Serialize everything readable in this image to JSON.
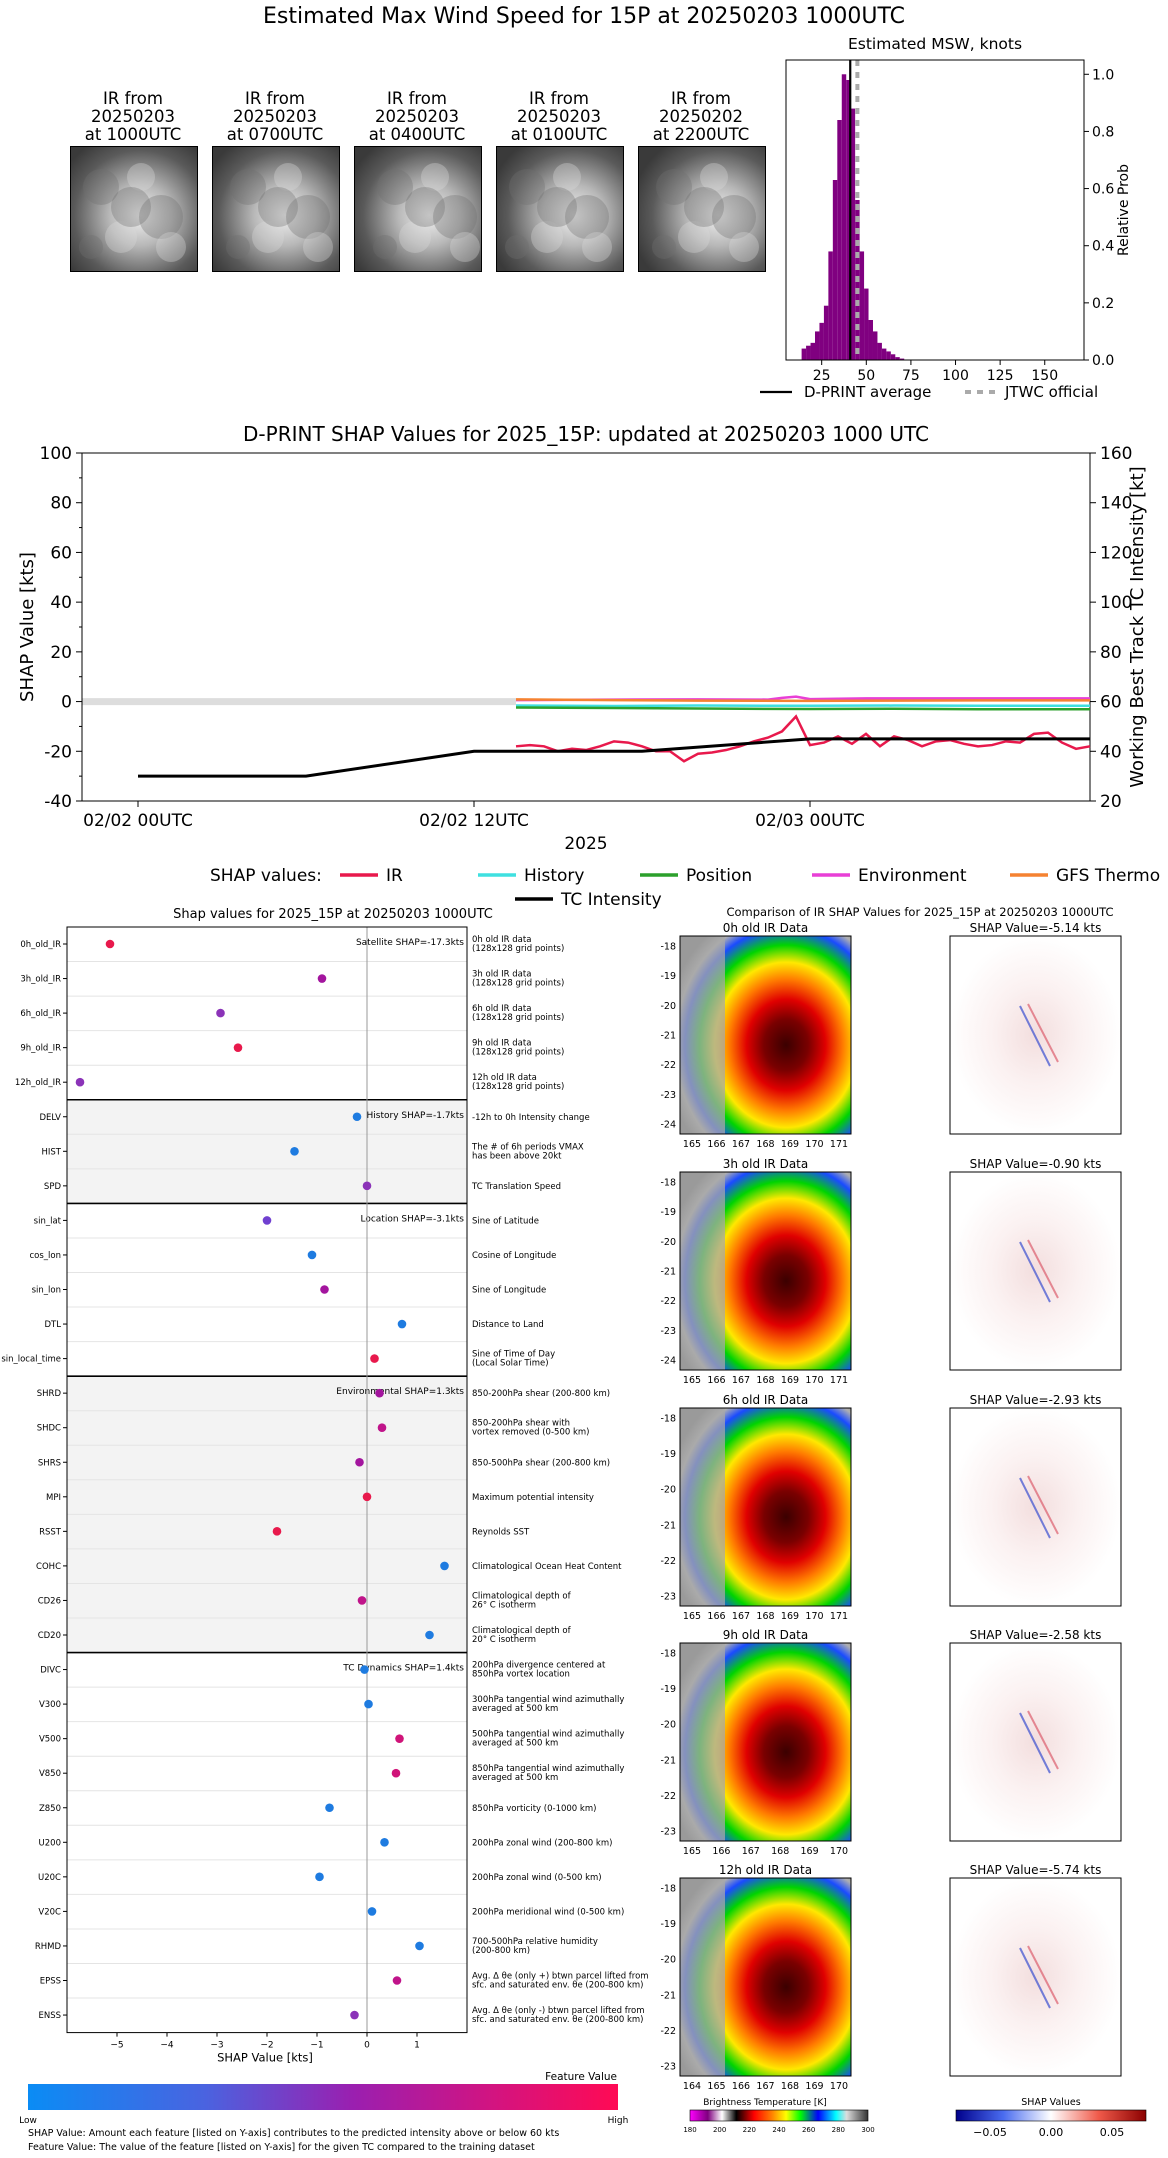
{
  "main_title": "Estimated Max Wind Speed for 15P at 20250203 1000UTC",
  "ir_panels": [
    {
      "label": "IR from\n20250203\nat 1000UTC"
    },
    {
      "label": "IR from\n20250203\nat 0700UTC"
    },
    {
      "label": "IR from\n20250203\nat 0400UTC"
    },
    {
      "label": "IR from\n20250203\nat 0100UTC"
    },
    {
      "label": "IR from\n20250202\nat 2200UTC"
    }
  ],
  "msw_legend": {
    "avg": "D-PRINT average",
    "jtwc": "JTWC official"
  },
  "shap_values_legend": {
    "title": "SHAP values:",
    "items": [
      {
        "name": "IR",
        "color": "#e8194c"
      },
      {
        "name": "History",
        "color": "#3fe0e0"
      },
      {
        "name": "Position",
        "color": "#2ca02c"
      },
      {
        "name": "Environment",
        "color": "#e83fd6"
      },
      {
        "name": "GFS Thermo",
        "color": "#f58231"
      },
      {
        "name": "TC Intensity",
        "color": "#000000"
      }
    ]
  },
  "chart_data": [
    {
      "type": "bar",
      "title": "Estimated MSW, knots",
      "ylabel": "Relative Prob",
      "xlim": [
        5,
        172
      ],
      "ylim": [
        0,
        1.05
      ],
      "xticks": [
        25,
        50,
        75,
        100,
        125,
        150
      ],
      "yticks": [
        0.0,
        0.2,
        0.4,
        0.6,
        0.8,
        1.0
      ],
      "bar_color": "#800080",
      "bin_width": 2.5,
      "bins": [
        {
          "x": 15,
          "y": 0.04
        },
        {
          "x": 17.5,
          "y": 0.05
        },
        {
          "x": 20,
          "y": 0.06
        },
        {
          "x": 22.5,
          "y": 0.1
        },
        {
          "x": 25,
          "y": 0.13
        },
        {
          "x": 27.5,
          "y": 0.19
        },
        {
          "x": 30,
          "y": 0.38
        },
        {
          "x": 32.5,
          "y": 0.63
        },
        {
          "x": 35,
          "y": 0.84
        },
        {
          "x": 37.5,
          "y": 1.0
        },
        {
          "x": 40,
          "y": 0.98
        },
        {
          "x": 42.5,
          "y": 0.88
        },
        {
          "x": 45,
          "y": 0.56
        },
        {
          "x": 47.5,
          "y": 0.38
        },
        {
          "x": 50,
          "y": 0.25
        },
        {
          "x": 52.5,
          "y": 0.14
        },
        {
          "x": 55,
          "y": 0.1
        },
        {
          "x": 57.5,
          "y": 0.06
        },
        {
          "x": 60,
          "y": 0.04
        },
        {
          "x": 62.5,
          "y": 0.03
        },
        {
          "x": 65,
          "y": 0.02
        },
        {
          "x": 67.5,
          "y": 0.01
        },
        {
          "x": 70,
          "y": 0.005
        }
      ],
      "dprint_average": 41,
      "jtwc_official": 45
    },
    {
      "type": "line",
      "title": "D-PRINT SHAP Values for 2025_15P: updated at 20250203 1000 UTC",
      "ylabel": "SHAP Value [kts]",
      "ylabel_right": "Working Best Track TC Intensity [kt]",
      "xlabel": "2025",
      "xlim_hours": [
        -2,
        34
      ],
      "ylim": [
        -40,
        100
      ],
      "ylim_right": [
        20,
        160
      ],
      "xticks": [
        {
          "h": 0,
          "label": "02/02 00UTC"
        },
        {
          "h": 12,
          "label": "02/02 12UTC"
        },
        {
          "h": 24,
          "label": "02/03 00UTC"
        }
      ],
      "yticks": [
        -40,
        -20,
        0,
        20,
        40,
        60,
        80,
        100
      ],
      "yticks_right": [
        20,
        40,
        60,
        80,
        100,
        120,
        140,
        160
      ],
      "series": [
        {
          "name": "IR",
          "color": "#e8194c",
          "x": [
            13.5,
            14,
            14.5,
            15,
            15.5,
            16,
            16.5,
            17,
            17.5,
            18,
            18.5,
            19,
            19.5,
            20,
            20.5,
            21,
            21.5,
            22,
            22.5,
            23,
            23.5,
            24,
            24.5,
            25,
            25.5,
            26,
            26.5,
            27,
            27.5,
            28,
            28.5,
            29,
            29.5,
            30,
            30.5,
            31,
            31.5,
            32,
            32.5,
            33,
            33.5,
            34
          ],
          "y": [
            -18,
            -17.5,
            -18,
            -20,
            -19,
            -19.5,
            -18,
            -16,
            -16.5,
            -18,
            -20,
            -20,
            -24,
            -21,
            -20.5,
            -19.5,
            -18,
            -16,
            -14.5,
            -12,
            -6,
            -17.5,
            -16.5,
            -14,
            -17,
            -13,
            -18,
            -14,
            -15.5,
            -18,
            -16,
            -15.5,
            -17,
            -18,
            -17.5,
            -16,
            -16.5,
            -13,
            -12.5,
            -16.5,
            -19,
            -18
          ]
        },
        {
          "name": "History",
          "color": "#3fe0e0",
          "x": [
            13.5,
            17,
            20,
            24,
            27,
            30,
            34
          ],
          "y": [
            -1.6,
            -1.8,
            -1.6,
            -1.7,
            -1.6,
            -1.7,
            -1.7
          ]
        },
        {
          "name": "Position",
          "color": "#2ca02c",
          "x": [
            13.5,
            17,
            20,
            24,
            27,
            30,
            34
          ],
          "y": [
            -2.4,
            -2.6,
            -2.8,
            -3.0,
            -2.9,
            -3.1,
            -3.1
          ]
        },
        {
          "name": "Environment",
          "color": "#e83fd6",
          "x": [
            13.5,
            17,
            20,
            22.5,
            23,
            23.5,
            24,
            26,
            30,
            34
          ],
          "y": [
            0.6,
            0.8,
            0.9,
            0.8,
            1.5,
            2.0,
            1.0,
            1.3,
            1.3,
            1.3
          ]
        },
        {
          "name": "GFS Thermo",
          "color": "#f58231",
          "x": [
            13.5,
            17,
            20,
            24,
            27,
            30,
            34
          ],
          "y": [
            0.9,
            0.6,
            0.4,
            0.3,
            0.4,
            0.5,
            0.5
          ]
        },
        {
          "name": "TC Intensity",
          "color": "#000000",
          "axis": "right",
          "x": [
            0,
            6,
            12,
            18,
            24,
            30,
            34
          ],
          "y": [
            30,
            30,
            40,
            40,
            45,
            45,
            45
          ]
        }
      ]
    },
    {
      "type": "scatter",
      "title": "Shap values for 2025_15P at 20250203 1000UTC",
      "xlabel": "SHAP Value [kts]",
      "xlim": [
        -6,
        2
      ],
      "xticks": [
        -5,
        -4,
        -3,
        -2,
        -1,
        0,
        1
      ],
      "groups": [
        {
          "label": "Satellite SHAP=-17.3kts",
          "shade": false,
          "rows": [
            {
              "feature": "0h_old_IR",
              "value": -5.14,
              "color": "#e8194c",
              "desc": "0h old IR data\n(128x128 grid points)"
            },
            {
              "feature": "3h_old_IR",
              "value": -0.9,
              "color": "#a3159e",
              "desc": "3h old IR data\n(128x128 grid points)"
            },
            {
              "feature": "6h_old_IR",
              "value": -2.93,
              "color": "#8b33b8",
              "desc": "6h old IR data\n(128x128 grid points)"
            },
            {
              "feature": "9h_old_IR",
              "value": -2.58,
              "color": "#e8194c",
              "desc": "9h old IR data\n(128x128 grid points)"
            },
            {
              "feature": "12h_old_IR",
              "value": -5.74,
              "color": "#8b33b8",
              "desc": "12h old IR data\n(128x128 grid points)"
            }
          ]
        },
        {
          "label": "History SHAP=-1.7kts",
          "shade": true,
          "rows": [
            {
              "feature": "DELV",
              "value": -0.2,
              "color": "#1e7be0",
              "desc": "-12h to 0h Intensity change"
            },
            {
              "feature": "HIST",
              "value": -1.45,
              "color": "#1e7be0",
              "desc": "The # of 6h periods VMAX\nhas been above 20kt"
            },
            {
              "feature": "SPD",
              "value": 0.0,
              "color": "#8b33b8",
              "desc": "TC Translation Speed"
            }
          ]
        },
        {
          "label": "Location SHAP=-3.1kts",
          "shade": false,
          "rows": [
            {
              "feature": "sin_lat",
              "value": -2.0,
              "color": "#7040d0",
              "desc": "Sine of Latitude"
            },
            {
              "feature": "cos_lon",
              "value": -1.1,
              "color": "#1e7be0",
              "desc": "Cosine of Longitude"
            },
            {
              "feature": "sin_lon",
              "value": -0.85,
              "color": "#a3159e",
              "desc": "Sine of Longitude"
            },
            {
              "feature": "DTL",
              "value": 0.7,
              "color": "#1e7be0",
              "desc": "Distance to Land"
            },
            {
              "feature": "sin_local_time",
              "value": 0.15,
              "color": "#e8194c",
              "desc": "Sine of Time of Day\n(Local Solar Time)"
            }
          ]
        },
        {
          "label": "Environmental SHAP=1.3kts",
          "shade": true,
          "rows": [
            {
              "feature": "SHRD",
              "value": 0.25,
              "color": "#a3159e",
              "desc": "850-200hPa shear (200-800 km)"
            },
            {
              "feature": "SHDC",
              "value": 0.3,
              "color": "#c0148a",
              "desc": "850-200hPa shear with\nvortex removed (0-500 km)"
            },
            {
              "feature": "SHRS",
              "value": -0.15,
              "color": "#a3159e",
              "desc": "850-500hPa shear (200-800 km)"
            },
            {
              "feature": "MPI",
              "value": 0.0,
              "color": "#e8194c",
              "desc": "Maximum potential intensity"
            },
            {
              "feature": "RSST",
              "value": -1.8,
              "color": "#e8194c",
              "desc": "Reynolds SST"
            },
            {
              "feature": "COHC",
              "value": 1.55,
              "color": "#1e7be0",
              "desc": "Climatological Ocean Heat Content"
            },
            {
              "feature": "CD26",
              "value": -0.1,
              "color": "#c0148a",
              "desc": "Climatological depth of\n26° C isotherm"
            },
            {
              "feature": "CD20",
              "value": 1.25,
              "color": "#1e7be0",
              "desc": "Climatological depth of\n20° C isotherm"
            }
          ]
        },
        {
          "label": "TC Dynamics SHAP=1.4kts",
          "shade": false,
          "rows": [
            {
              "feature": "DIVC",
              "value": -0.05,
              "color": "#1e7be0",
              "desc": "200hPa divergence centered at\n850hPa vortex location"
            },
            {
              "feature": "V300",
              "value": 0.03,
              "color": "#1e7be0",
              "desc": "300hPa tangential wind azimuthally\naveraged at 500 km"
            },
            {
              "feature": "V500",
              "value": 0.65,
              "color": "#d01479",
              "desc": "500hPa tangential wind azimuthally\naveraged at 500 km"
            },
            {
              "feature": "V850",
              "value": 0.58,
              "color": "#d01479",
              "desc": "850hPa tangential wind azimuthally\naveraged at 500 km"
            },
            {
              "feature": "Z850",
              "value": -0.75,
              "color": "#1e7be0",
              "desc": "850hPa vorticity (0-1000 km)"
            },
            {
              "feature": "U200",
              "value": 0.35,
              "color": "#1e7be0",
              "desc": "200hPa zonal wind (200-800 km)"
            },
            {
              "feature": "U20C",
              "value": -0.95,
              "color": "#1e7be0",
              "desc": "200hPa zonal wind (0-500 km)"
            },
            {
              "feature": "V20C",
              "value": 0.1,
              "color": "#1e7be0",
              "desc": "200hPa meridional wind (0-500 km)"
            },
            {
              "feature": "RHMD",
              "value": 1.05,
              "color": "#1e7be0",
              "desc": "700-500hPa relative humidity\n(200-800 km)"
            },
            {
              "feature": "EPSS",
              "value": 0.6,
              "color": "#c0148a",
              "desc": "Avg. Δ θe (only +) btwn parcel lifted from\nsfc. and saturated env. θe (200-800 km)"
            },
            {
              "feature": "ENSS",
              "value": -0.25,
              "color": "#8b33b8",
              "desc": "Avg. Δ θe (only -) btwn parcel lifted from\nsfc. and saturated env. θe (200-800 km)"
            }
          ]
        }
      ]
    }
  ],
  "feature_colorbar": {
    "title": "Feature Value",
    "low": "Low",
    "high": "High"
  },
  "footnotes": [
    "SHAP Value: Amount each feature [listed on Y-axis] contributes to the predicted intensity above or below 60 kts",
    "Feature Value: The value of the feature [listed on Y-axis] for the given TC compared to the training dataset"
  ],
  "ir_comparison": {
    "title": "Comparison of IR SHAP Values for 2025_15P at 20250203 1000UTC",
    "panels": [
      {
        "ir_title": "0h old IR Data",
        "shap_title": "SHAP Value=-5.14 kts",
        "xticks": [
          "165",
          "166",
          "167",
          "168",
          "169",
          "170",
          "171"
        ],
        "yticks": [
          "-18",
          "-19",
          "-20",
          "-21",
          "-22",
          "-23",
          "-24"
        ]
      },
      {
        "ir_title": "3h old IR Data",
        "shap_title": "SHAP Value=-0.90 kts",
        "xticks": [
          "165",
          "166",
          "167",
          "168",
          "169",
          "170",
          "171"
        ],
        "yticks": [
          "-18",
          "-19",
          "-20",
          "-21",
          "-22",
          "-23",
          "-24"
        ]
      },
      {
        "ir_title": "6h old IR Data",
        "shap_title": "SHAP Value=-2.93 kts",
        "xticks": [
          "165",
          "166",
          "167",
          "168",
          "169",
          "170",
          "171"
        ],
        "yticks": [
          "-18",
          "-19",
          "-20",
          "-21",
          "-22",
          "-23"
        ]
      },
      {
        "ir_title": "9h old IR Data",
        "shap_title": "SHAP Value=-2.58 kts",
        "xticks": [
          "165",
          "166",
          "167",
          "168",
          "169",
          "170"
        ],
        "yticks": [
          "-18",
          "-19",
          "-20",
          "-21",
          "-22",
          "-23"
        ]
      },
      {
        "ir_title": "12h old IR Data",
        "shap_title": "SHAP Value=-5.74 kts",
        "xticks": [
          "164",
          "165",
          "166",
          "167",
          "168",
          "169",
          "170"
        ],
        "yticks": [
          "-18",
          "-19",
          "-20",
          "-21",
          "-22",
          "-23"
        ]
      }
    ],
    "bt_colorbar": {
      "title": "Brightness Temperature [K]",
      "ticks": [
        "180",
        "200",
        "220",
        "240",
        "260",
        "280",
        "300"
      ]
    },
    "shap_colorbar": {
      "title": "SHAP Values",
      "ticks": [
        "−0.05",
        "0.00",
        "0.05"
      ]
    }
  }
}
